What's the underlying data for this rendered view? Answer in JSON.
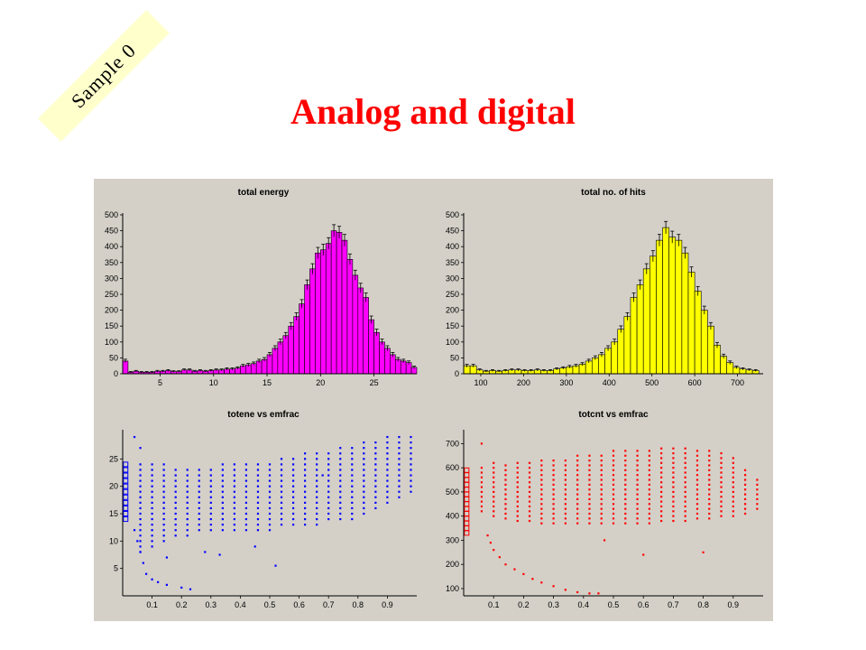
{
  "slide": {
    "title": "Analog and digital",
    "badge": "Sample 0",
    "panel_background": "#d4d0c8"
  },
  "chart_data": [
    {
      "type": "bar",
      "title": "total energy",
      "color": "#ff00ff",
      "error_bars": true,
      "xlim": [
        1.5,
        29
      ],
      "ylim": [
        0,
        500
      ],
      "xticks": [
        5,
        10,
        15,
        20,
        25
      ],
      "yticks": [
        0,
        50,
        100,
        150,
        200,
        250,
        300,
        350,
        400,
        450,
        500
      ],
      "bin_start": 1.5,
      "bin_width": 0.5,
      "values": [
        40,
        5,
        8,
        5,
        5,
        5,
        8,
        8,
        10,
        7,
        7,
        12,
        12,
        8,
        10,
        8,
        10,
        12,
        12,
        15,
        15,
        18,
        25,
        28,
        32,
        40,
        45,
        60,
        80,
        100,
        120,
        150,
        180,
        220,
        280,
        330,
        380,
        390,
        410,
        450,
        445,
        420,
        360,
        310,
        270,
        240,
        170,
        130,
        100,
        80,
        60,
        45,
        40,
        35,
        20,
        12
      ]
    },
    {
      "type": "bar",
      "title": "total no. of hits",
      "color": "#ffff00",
      "error_bars": true,
      "xlim": [
        60,
        760
      ],
      "ylim": [
        0,
        500
      ],
      "xticks": [
        100,
        200,
        300,
        400,
        500,
        600,
        700
      ],
      "yticks": [
        0,
        50,
        100,
        150,
        200,
        250,
        300,
        350,
        400,
        450,
        500
      ],
      "bin_start": 60,
      "bin_width": 15,
      "values": [
        25,
        25,
        12,
        8,
        10,
        8,
        10,
        12,
        12,
        10,
        10,
        12,
        10,
        10,
        15,
        18,
        22,
        25,
        30,
        40,
        50,
        60,
        80,
        100,
        140,
        180,
        240,
        280,
        330,
        370,
        420,
        460,
        430,
        420,
        380,
        320,
        260,
        200,
        150,
        90,
        55,
        35,
        20,
        15,
        12,
        10
      ]
    },
    {
      "type": "scatter",
      "title": "totene vs emfrac",
      "color": "#0000ff",
      "xlim": [
        0,
        1
      ],
      "ylim": [
        0,
        30
      ],
      "xticks": [
        "0.1",
        "0.2",
        "0.3",
        "0.4",
        "0.5",
        "0.6",
        "0.7",
        "0.8",
        "0.9"
      ],
      "yticks": [
        "5",
        "10",
        "15",
        "20",
        "25"
      ],
      "x_columns": [
        0.06,
        0.1,
        0.14,
        0.18,
        0.22,
        0.26,
        0.3,
        0.34,
        0.38,
        0.42,
        0.46,
        0.5,
        0.54,
        0.58,
        0.62,
        0.66,
        0.7,
        0.74,
        0.78,
        0.82,
        0.86,
        0.9,
        0.94,
        0.98
      ],
      "y_low": [
        8,
        9,
        10,
        11,
        11,
        12,
        12,
        12,
        12,
        12,
        12,
        12,
        13,
        13,
        13,
        13,
        14,
        14,
        14,
        15,
        16,
        17,
        18,
        19
      ],
      "y_high": [
        24,
        24,
        24,
        23,
        23,
        23,
        23,
        24,
        24,
        24,
        24,
        24,
        25,
        25,
        26,
        26,
        26,
        27,
        27,
        28,
        28,
        29,
        29,
        29
      ],
      "y_step": 1,
      "edge_cluster": {
        "x": 0.01,
        "y_low": 14,
        "y_high": 24
      },
      "tail_points": [
        [
          0.04,
          12
        ],
        [
          0.05,
          10
        ],
        [
          0.06,
          8
        ],
        [
          0.07,
          6
        ],
        [
          0.08,
          4
        ],
        [
          0.1,
          3
        ],
        [
          0.12,
          2.5
        ],
        [
          0.15,
          2
        ],
        [
          0.2,
          1.5
        ],
        [
          0.23,
          1.2
        ],
        [
          0.06,
          27
        ],
        [
          0.04,
          29
        ],
        [
          0.15,
          7
        ],
        [
          0.33,
          7.5
        ],
        [
          0.52,
          5.5
        ],
        [
          0.28,
          8
        ],
        [
          0.45,
          9
        ],
        [
          0.68,
          22
        ]
      ]
    },
    {
      "type": "scatter",
      "title": "totcnt vs emfrac",
      "color": "#ff0000",
      "xlim": [
        0,
        1
      ],
      "ylim": [
        70,
        750
      ],
      "xticks": [
        "0.1",
        "0.2",
        "0.3",
        "0.4",
        "0.5",
        "0.6",
        "0.7",
        "0.8",
        "0.9"
      ],
      "yticks": [
        "100",
        "200",
        "300",
        "400",
        "500",
        "600",
        "700"
      ],
      "x_columns": [
        0.06,
        0.1,
        0.14,
        0.18,
        0.22,
        0.26,
        0.3,
        0.34,
        0.38,
        0.42,
        0.46,
        0.5,
        0.54,
        0.58,
        0.62,
        0.66,
        0.7,
        0.74,
        0.78,
        0.82,
        0.86,
        0.9,
        0.94,
        0.98
      ],
      "y_low": [
        420,
        400,
        390,
        380,
        380,
        370,
        370,
        370,
        370,
        370,
        370,
        370,
        370,
        370,
        370,
        380,
        380,
        380,
        390,
        390,
        400,
        400,
        410,
        430
      ],
      "y_high": [
        600,
        620,
        620,
        620,
        630,
        630,
        640,
        640,
        650,
        650,
        660,
        670,
        680,
        680,
        680,
        680,
        690,
        690,
        680,
        670,
        660,
        640,
        600,
        560
      ],
      "y_step": 20,
      "edge_cluster": {
        "x": 0.01,
        "y_low": 330,
        "y_high": 600
      },
      "tail_points": [
        [
          0.08,
          320
        ],
        [
          0.09,
          290
        ],
        [
          0.1,
          260
        ],
        [
          0.12,
          230
        ],
        [
          0.14,
          200
        ],
        [
          0.17,
          180
        ],
        [
          0.2,
          160
        ],
        [
          0.23,
          140
        ],
        [
          0.26,
          125
        ],
        [
          0.3,
          110
        ],
        [
          0.34,
          95
        ],
        [
          0.38,
          85
        ],
        [
          0.42,
          80
        ],
        [
          0.45,
          80
        ],
        [
          0.06,
          700
        ],
        [
          0.47,
          300
        ],
        [
          0.6,
          240
        ],
        [
          0.8,
          250
        ]
      ]
    }
  ]
}
